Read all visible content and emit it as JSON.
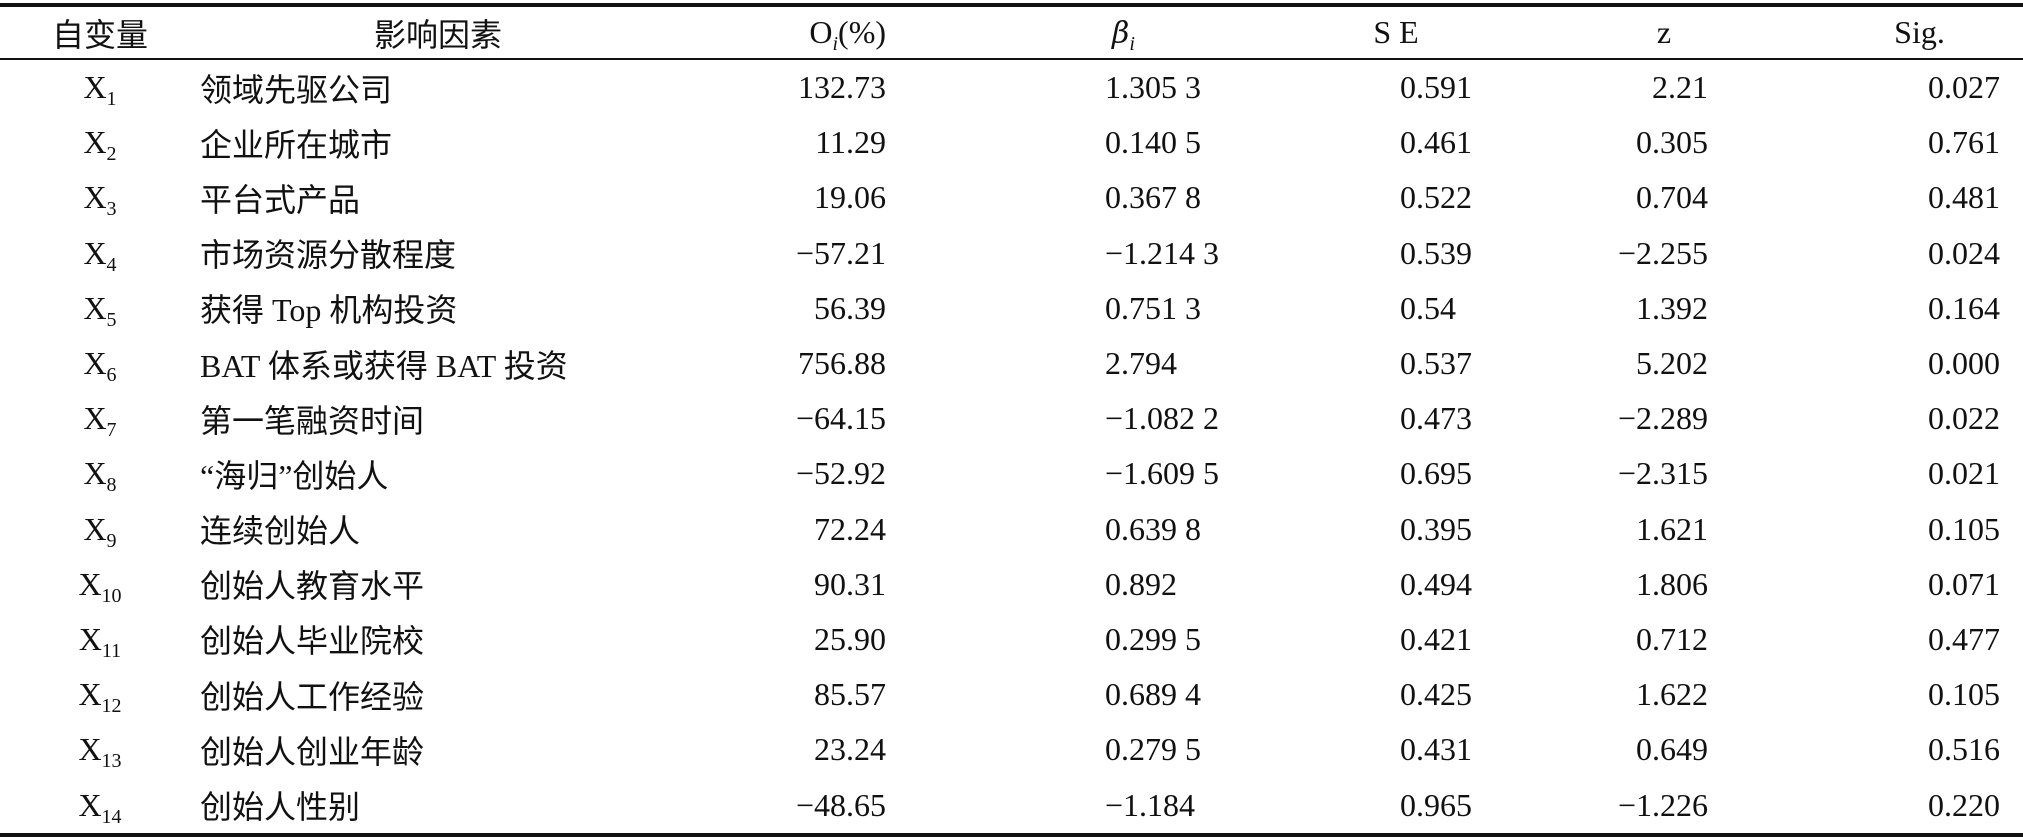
{
  "table": {
    "headers": {
      "var": "自变量",
      "factor": "影响因素",
      "o_base": "O",
      "o_sub": "i",
      "o_unit": "(%)",
      "beta_base": "β",
      "beta_sub": "i",
      "se": "S E",
      "z": "z",
      "sig": "Sig."
    },
    "rows": [
      {
        "var": "X",
        "sub": "1",
        "factor": "领域先驱公司",
        "o": "132.73",
        "beta": "1.305 3",
        "se": "0.591",
        "z": "2.21",
        "sig": "0.027"
      },
      {
        "var": "X",
        "sub": "2",
        "factor": "企业所在城市",
        "o": "11.29",
        "beta": "0.140 5",
        "se": "0.461",
        "z": "0.305",
        "sig": "0.761"
      },
      {
        "var": "X",
        "sub": "3",
        "factor": "平台式产品",
        "o": "19.06",
        "beta": "0.367 8",
        "se": "0.522",
        "z": "0.704",
        "sig": "0.481"
      },
      {
        "var": "X",
        "sub": "4",
        "factor": "市场资源分散程度",
        "o": "−57.21",
        "beta": "−1.214 3",
        "se": "0.539",
        "z": "−2.255",
        "sig": "0.024"
      },
      {
        "var": "X",
        "sub": "5",
        "factor": "获得 Top 机构投资",
        "o": "56.39",
        "beta": "0.751 3",
        "se": "0.54",
        "z": "1.392",
        "sig": "0.164"
      },
      {
        "var": "X",
        "sub": "6",
        "factor": "BAT 体系或获得 BAT 投资",
        "o": "756.88",
        "beta": "2.794",
        "se": "0.537",
        "z": "5.202",
        "sig": "0.000"
      },
      {
        "var": "X",
        "sub": "7",
        "factor": "第一笔融资时间",
        "o": "−64.15",
        "beta": "−1.082 2",
        "se": "0.473",
        "z": "−2.289",
        "sig": "0.022"
      },
      {
        "var": "X",
        "sub": "8",
        "factor": "“海归”创始人",
        "o": "−52.92",
        "beta": "−1.609 5",
        "se": "0.695",
        "z": "−2.315",
        "sig": "0.021"
      },
      {
        "var": "X",
        "sub": "9",
        "factor": "连续创始人",
        "o": "72.24",
        "beta": "0.639 8",
        "se": "0.395",
        "z": "1.621",
        "sig": "0.105"
      },
      {
        "var": "X",
        "sub": "10",
        "factor": "创始人教育水平",
        "o": "90.31",
        "beta": "0.892",
        "se": "0.494",
        "z": "1.806",
        "sig": "0.071"
      },
      {
        "var": "X",
        "sub": "11",
        "factor": "创始人毕业院校",
        "o": "25.90",
        "beta": "0.299 5",
        "se": "0.421",
        "z": "0.712",
        "sig": "0.477"
      },
      {
        "var": "X",
        "sub": "12",
        "factor": "创始人工作经验",
        "o": "85.57",
        "beta": "0.689 4",
        "se": "0.425",
        "z": "1.622",
        "sig": "0.105"
      },
      {
        "var": "X",
        "sub": "13",
        "factor": "创始人创业年龄",
        "o": "23.24",
        "beta": "0.279 5",
        "se": "0.431",
        "z": "0.649",
        "sig": "0.516"
      },
      {
        "var": "X",
        "sub": "14",
        "factor": "创始人性别",
        "o": "−48.65",
        "beta": "−1.184",
        "se": "0.965",
        "z": "−1.226",
        "sig": "0.220"
      }
    ]
  }
}
